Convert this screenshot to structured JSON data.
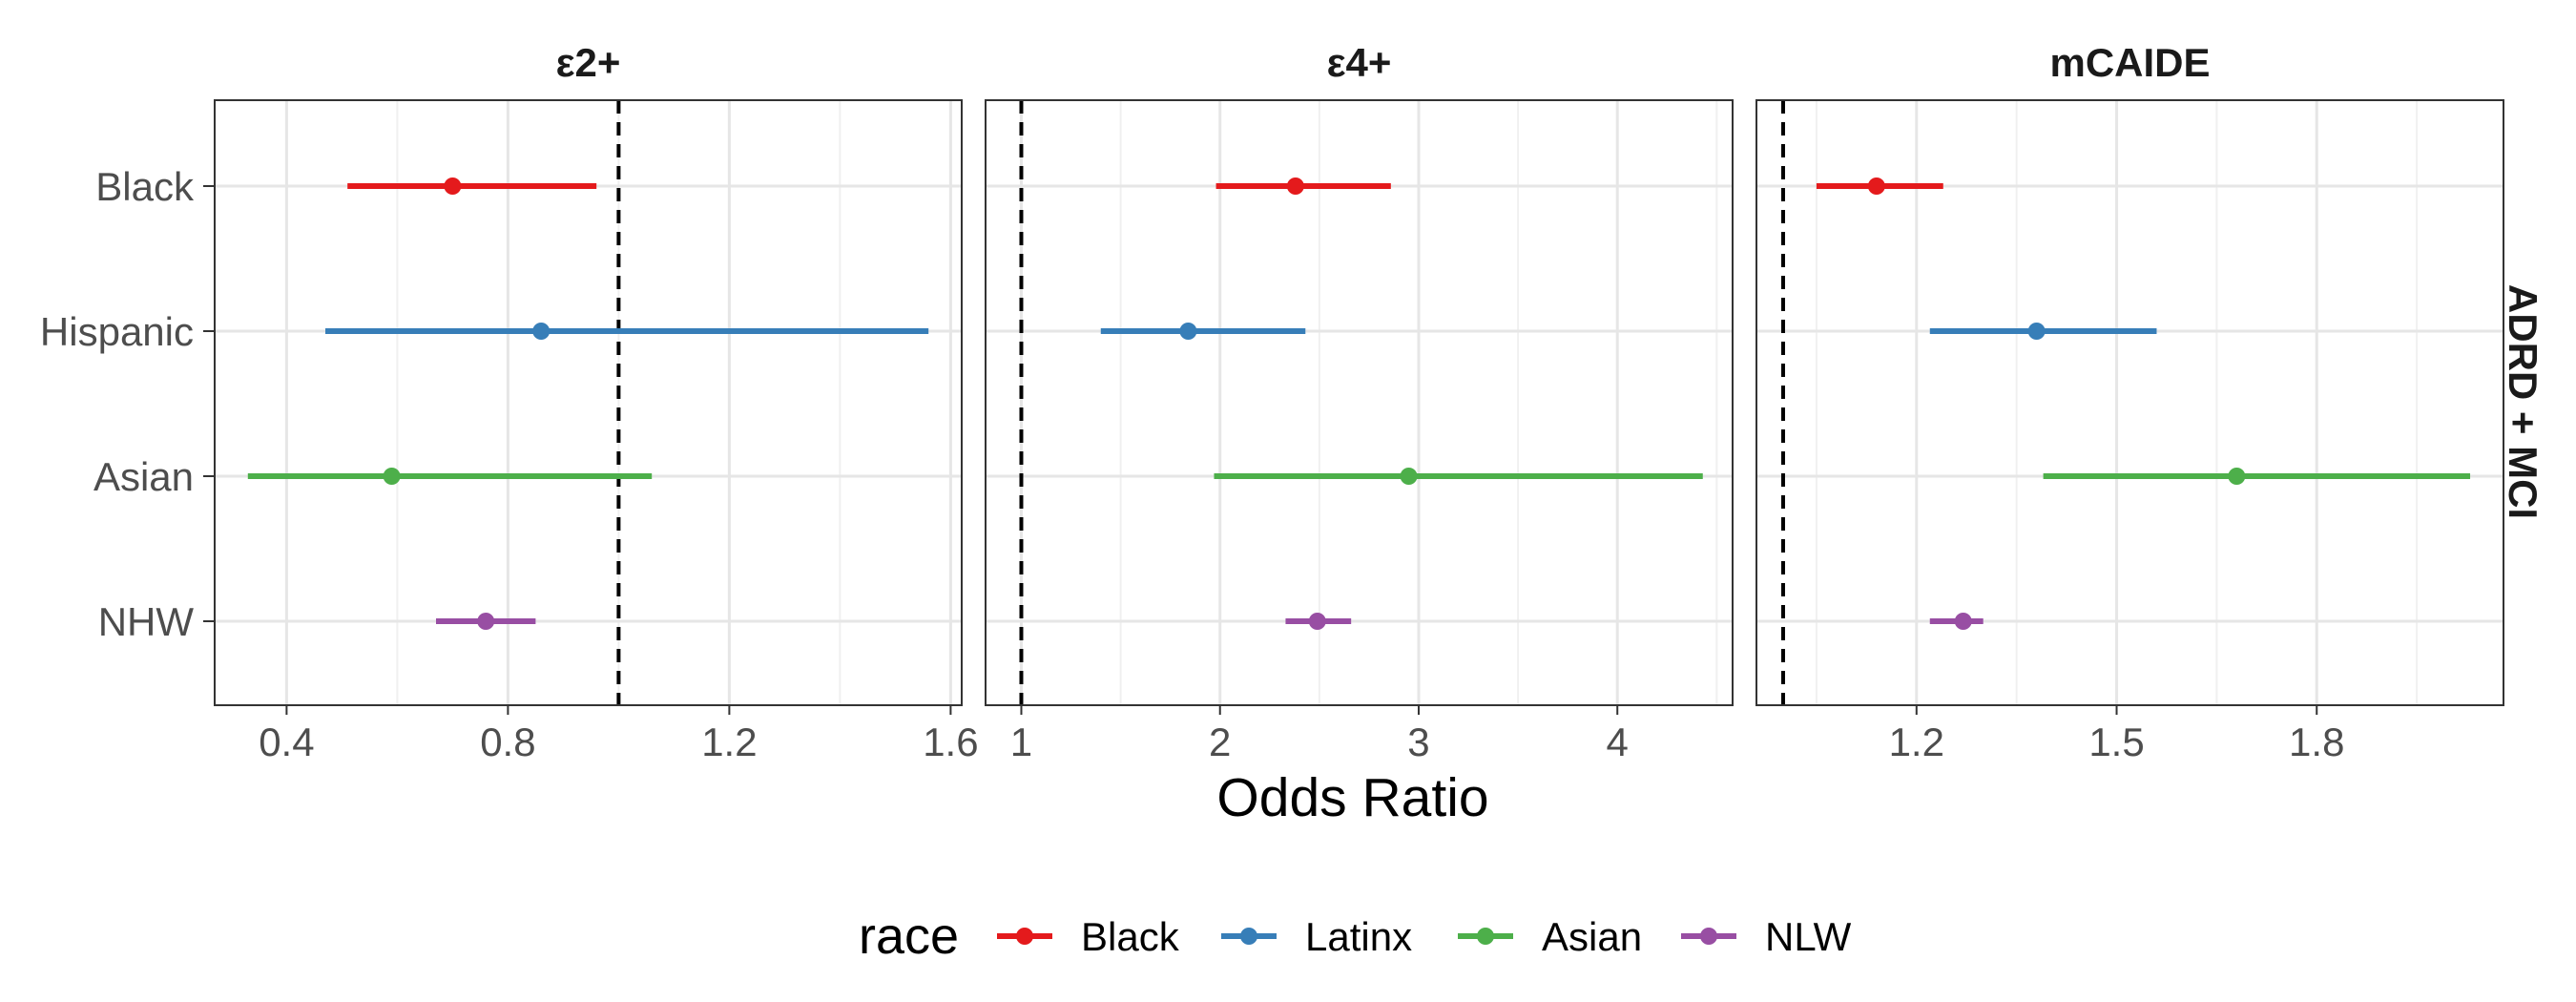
{
  "chart_data": {
    "type": "forest",
    "facets": [
      {
        "title": "ε2+",
        "xlim": [
          0.27,
          1.62
        ],
        "ticks": [
          0.4,
          0.8,
          1.2,
          1.6
        ],
        "tick_labels": [
          "0.4",
          "0.8",
          "1.2",
          "1.6"
        ],
        "minor_ticks": [
          0.6,
          1.0,
          1.4
        ],
        "ref_line": 1.0,
        "rows": [
          {
            "label": "Black",
            "estimate": 0.7,
            "lower": 0.51,
            "upper": 0.96
          },
          {
            "label": "Hispanic",
            "estimate": 0.86,
            "lower": 0.47,
            "upper": 1.56
          },
          {
            "label": "Asian",
            "estimate": 0.59,
            "lower": 0.33,
            "upper": 1.06
          },
          {
            "label": "NHW",
            "estimate": 0.76,
            "lower": 0.67,
            "upper": 0.85
          }
        ]
      },
      {
        "title": "ε4+",
        "xlim": [
          0.82,
          4.58
        ],
        "ticks": [
          1,
          2,
          3,
          4
        ],
        "tick_labels": [
          "1",
          "2",
          "3",
          "4"
        ],
        "minor_ticks": [
          1.5,
          2.5,
          3.5,
          4.5
        ],
        "ref_line": 1.0,
        "rows": [
          {
            "label": "Black",
            "estimate": 2.38,
            "lower": 1.98,
            "upper": 2.86
          },
          {
            "label": "Hispanic",
            "estimate": 1.84,
            "lower": 1.4,
            "upper": 2.43
          },
          {
            "label": "Asian",
            "estimate": 2.95,
            "lower": 1.97,
            "upper": 4.43
          },
          {
            "label": "NHW",
            "estimate": 2.49,
            "lower": 2.33,
            "upper": 2.66
          }
        ]
      },
      {
        "title": "mCAIDE",
        "xlim": [
          0.96,
          2.08
        ],
        "ticks": [
          1.2,
          1.5,
          1.8
        ],
        "tick_labels": [
          "1.2",
          "1.5",
          "1.8"
        ],
        "minor_ticks": [
          1.05,
          1.35,
          1.65,
          1.95
        ],
        "ref_line": 1.0,
        "rows": [
          {
            "label": "Black",
            "estimate": 1.14,
            "lower": 1.05,
            "upper": 1.24
          },
          {
            "label": "Hispanic",
            "estimate": 1.38,
            "lower": 1.22,
            "upper": 1.56
          },
          {
            "label": "Asian",
            "estimate": 1.68,
            "lower": 1.39,
            "upper": 2.03
          },
          {
            "label": "NHW",
            "estimate": 1.27,
            "lower": 1.22,
            "upper": 1.3
          }
        ]
      }
    ],
    "y_categories": [
      "Black",
      "Hispanic",
      "Asian",
      "NHW"
    ],
    "xlabel": "Odds Ratio",
    "strip_label": "ADRD + MCI",
    "legend": {
      "title": "race",
      "position": "bottom",
      "entries": [
        {
          "name": "Black",
          "color": "#E41A1C"
        },
        {
          "name": "Latinx",
          "color": "#377EB8"
        },
        {
          "name": "Asian",
          "color": "#4DAF4A"
        },
        {
          "name": "NLW",
          "color": "#984EA3"
        }
      ]
    },
    "grid": true
  }
}
